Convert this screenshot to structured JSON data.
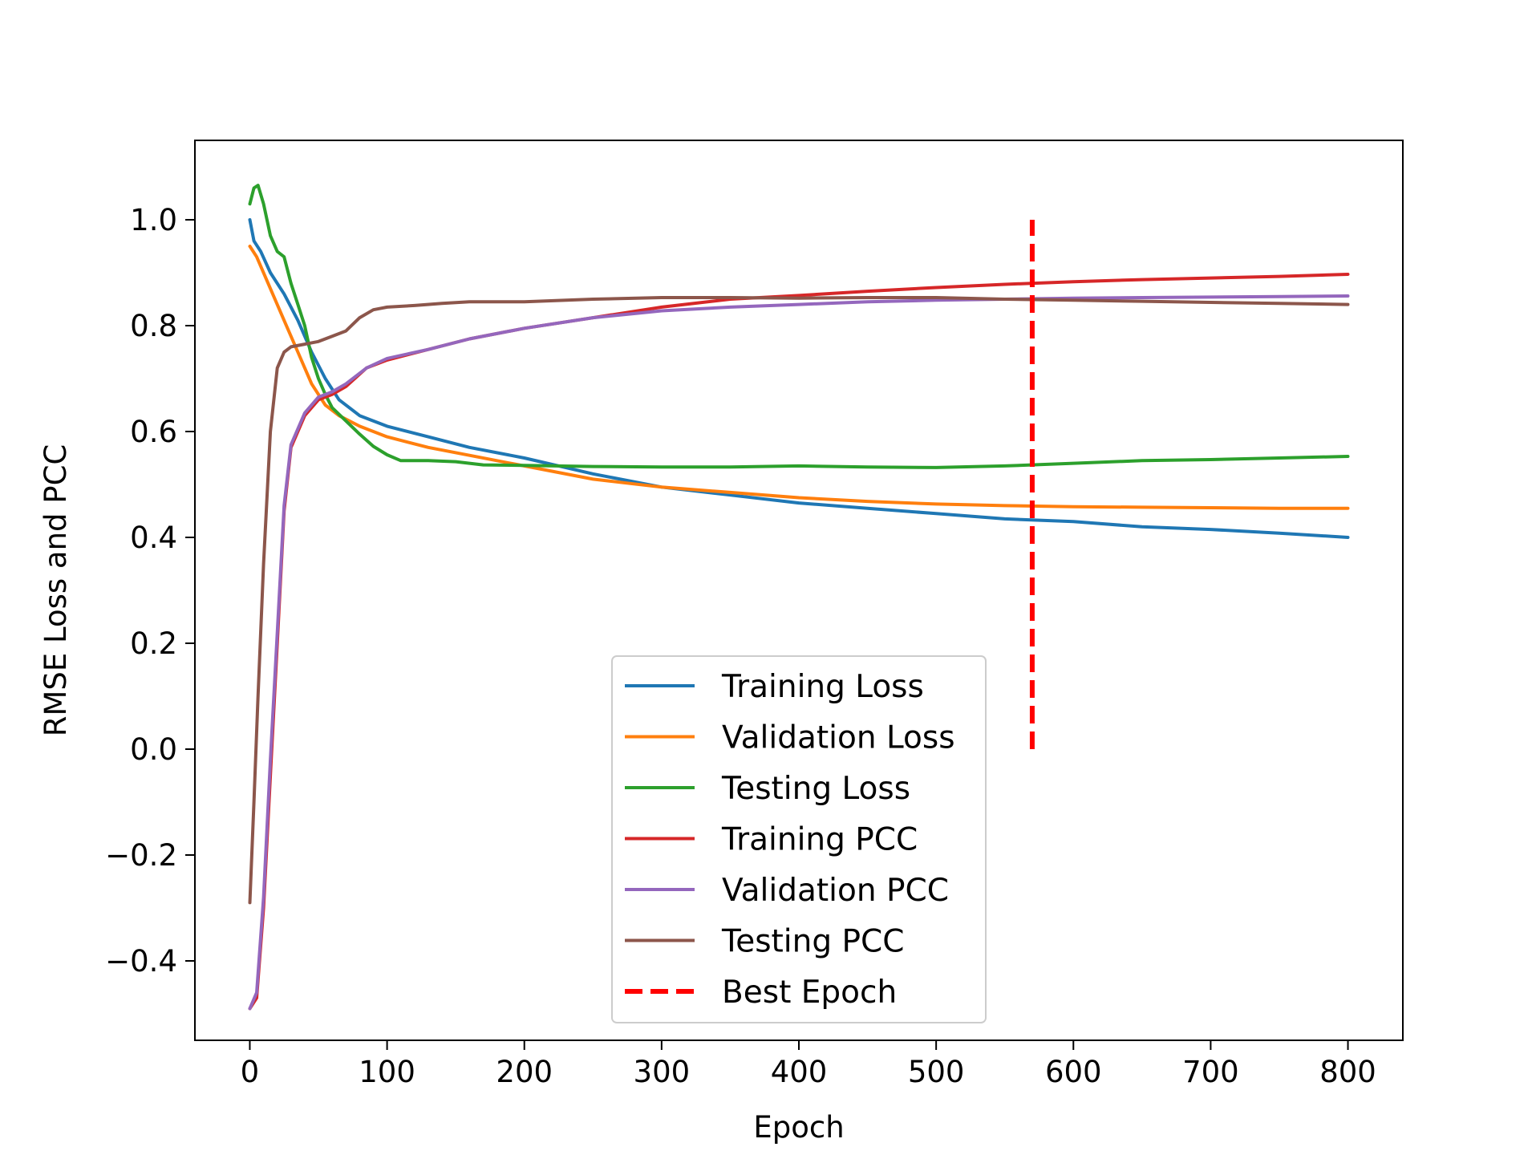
{
  "chart_data": {
    "type": "line",
    "title": "",
    "xlabel": "Epoch",
    "ylabel": "RMSE Loss and PCC",
    "xlim": [
      -40,
      840
    ],
    "ylim": [
      -0.55,
      1.15
    ],
    "xticks": [
      0,
      100,
      200,
      300,
      400,
      500,
      600,
      700,
      800
    ],
    "yticks": [
      -0.4,
      -0.2,
      0.0,
      0.2,
      0.4,
      0.6,
      0.8,
      1.0
    ],
    "xtick_labels": [
      "0",
      "100",
      "200",
      "300",
      "400",
      "500",
      "600",
      "700",
      "800"
    ],
    "ytick_labels": [
      "−0.4",
      "−0.2",
      "0.0",
      "0.2",
      "0.4",
      "0.6",
      "0.8",
      "1.0"
    ],
    "grid": false,
    "legend_position": "lower-center",
    "series": [
      {
        "name": "Training Loss",
        "color": "#1f77b4",
        "x": [
          0,
          3,
          8,
          15,
          25,
          35,
          45,
          55,
          65,
          80,
          100,
          130,
          160,
          200,
          250,
          300,
          350,
          400,
          450,
          500,
          550,
          600,
          650,
          700,
          750,
          800
        ],
        "y": [
          1.0,
          0.96,
          0.94,
          0.9,
          0.86,
          0.81,
          0.75,
          0.7,
          0.66,
          0.63,
          0.61,
          0.59,
          0.57,
          0.55,
          0.52,
          0.495,
          0.48,
          0.465,
          0.455,
          0.445,
          0.435,
          0.43,
          0.42,
          0.415,
          0.408,
          0.4
        ]
      },
      {
        "name": "Validation Loss",
        "color": "#ff7f0e",
        "x": [
          0,
          5,
          15,
          25,
          35,
          45,
          55,
          65,
          80,
          100,
          130,
          160,
          200,
          250,
          300,
          350,
          400,
          450,
          500,
          550,
          600,
          650,
          700,
          750,
          800
        ],
        "y": [
          0.95,
          0.93,
          0.87,
          0.81,
          0.75,
          0.69,
          0.65,
          0.63,
          0.61,
          0.59,
          0.57,
          0.555,
          0.535,
          0.51,
          0.495,
          0.485,
          0.475,
          0.468,
          0.463,
          0.46,
          0.458,
          0.457,
          0.456,
          0.455,
          0.455
        ]
      },
      {
        "name": "Testing Loss",
        "color": "#2ca02c",
        "x": [
          0,
          3,
          6,
          10,
          15,
          20,
          25,
          30,
          35,
          40,
          45,
          50,
          55,
          60,
          70,
          80,
          90,
          100,
          110,
          130,
          150,
          170,
          200,
          250,
          300,
          350,
          400,
          450,
          500,
          550,
          600,
          650,
          700,
          750,
          800
        ],
        "y": [
          1.03,
          1.06,
          1.065,
          1.03,
          0.97,
          0.94,
          0.93,
          0.88,
          0.84,
          0.8,
          0.74,
          0.7,
          0.67,
          0.645,
          0.62,
          0.595,
          0.572,
          0.556,
          0.545,
          0.545,
          0.543,
          0.537,
          0.536,
          0.534,
          0.533,
          0.533,
          0.535,
          0.533,
          0.532,
          0.535,
          0.54,
          0.545,
          0.547,
          0.55,
          0.553
        ]
      },
      {
        "name": "Training PCC",
        "color": "#d62728",
        "x": [
          0,
          5,
          10,
          15,
          20,
          25,
          30,
          40,
          50,
          60,
          70,
          85,
          100,
          130,
          160,
          200,
          250,
          300,
          350,
          400,
          450,
          500,
          550,
          600,
          650,
          700,
          750,
          800
        ],
        "y": [
          -0.49,
          -0.47,
          -0.3,
          -0.05,
          0.2,
          0.45,
          0.57,
          0.63,
          0.66,
          0.67,
          0.685,
          0.72,
          0.735,
          0.755,
          0.775,
          0.795,
          0.815,
          0.835,
          0.85,
          0.857,
          0.865,
          0.872,
          0.878,
          0.883,
          0.887,
          0.89,
          0.893,
          0.897
        ]
      },
      {
        "name": "Validation PCC",
        "color": "#9467bd",
        "x": [
          0,
          5,
          10,
          15,
          20,
          25,
          30,
          40,
          50,
          60,
          70,
          85,
          100,
          130,
          160,
          200,
          250,
          300,
          350,
          400,
          450,
          500,
          550,
          600,
          650,
          700,
          750,
          800
        ],
        "y": [
          -0.49,
          -0.46,
          -0.28,
          -0.02,
          0.22,
          0.46,
          0.575,
          0.635,
          0.665,
          0.675,
          0.69,
          0.72,
          0.738,
          0.755,
          0.775,
          0.795,
          0.815,
          0.828,
          0.835,
          0.84,
          0.845,
          0.848,
          0.85,
          0.852,
          0.853,
          0.854,
          0.855,
          0.856
        ]
      },
      {
        "name": "Testing PCC",
        "color": "#8c564b",
        "x": [
          0,
          3,
          6,
          10,
          15,
          20,
          25,
          30,
          40,
          50,
          60,
          70,
          80,
          90,
          100,
          120,
          140,
          160,
          200,
          250,
          300,
          350,
          400,
          450,
          500,
          550,
          600,
          650,
          700,
          750,
          800
        ],
        "y": [
          -0.29,
          -0.1,
          0.1,
          0.35,
          0.6,
          0.72,
          0.75,
          0.76,
          0.765,
          0.77,
          0.78,
          0.79,
          0.815,
          0.83,
          0.835,
          0.838,
          0.842,
          0.845,
          0.845,
          0.85,
          0.853,
          0.853,
          0.852,
          0.853,
          0.853,
          0.85,
          0.848,
          0.846,
          0.844,
          0.842,
          0.84
        ]
      }
    ],
    "best_epoch": {
      "name": "Best Epoch",
      "color": "#ff0000",
      "x": 570,
      "y_range": [
        0.0,
        1.0
      ]
    }
  }
}
